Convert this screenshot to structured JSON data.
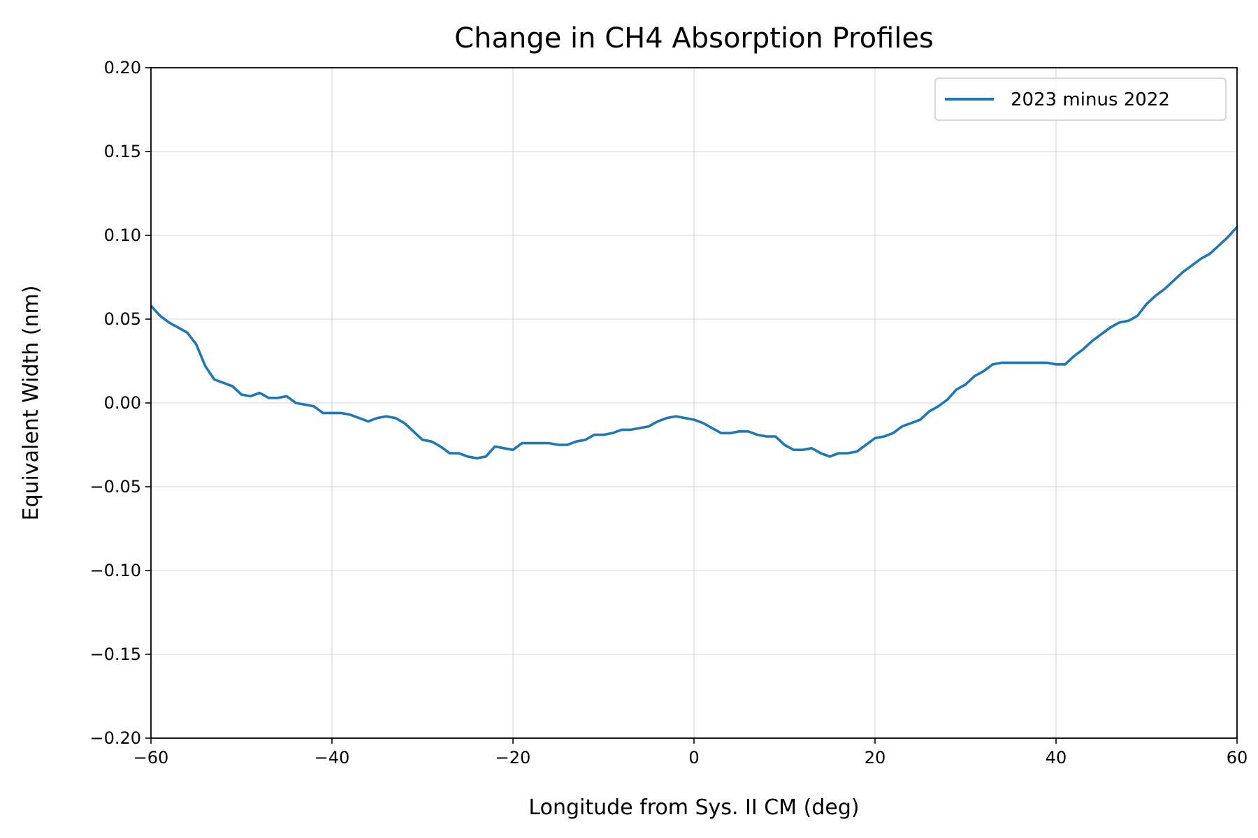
{
  "chart_data": {
    "type": "line",
    "title": "Change in CH4 Absorption Profiles",
    "xlabel": "Longitude from Sys. II CM (deg)",
    "ylabel": "Equivalent Width (nm)",
    "xlim": [
      -60,
      60
    ],
    "ylim": [
      -0.2,
      0.2
    ],
    "xticks": [
      -60,
      -40,
      -20,
      0,
      20,
      40,
      60
    ],
    "xtick_labels": [
      "−60",
      "−40",
      "−20",
      "0",
      "20",
      "40",
      "60"
    ],
    "yticks": [
      -0.2,
      -0.15,
      -0.1,
      -0.05,
      0.0,
      0.05,
      0.1,
      0.15,
      0.2
    ],
    "ytick_labels": [
      "−0.20",
      "−0.15",
      "−0.10",
      "−0.05",
      "0.00",
      "0.05",
      "0.10",
      "0.15",
      "0.20"
    ],
    "grid": true,
    "legend_position": "top-right",
    "series": [
      {
        "name": "2023 minus 2022",
        "color": "#1f77b4",
        "x": [
          -60,
          -59,
          -58,
          -57,
          -56,
          -55,
          -54,
          -53,
          -52,
          -51,
          -50,
          -49,
          -48,
          -47,
          -46,
          -45,
          -44,
          -43,
          -42,
          -41,
          -40,
          -39,
          -38,
          -37,
          -36,
          -35,
          -34,
          -33,
          -32,
          -31,
          -30,
          -29,
          -28,
          -27,
          -26,
          -25,
          -24,
          -23,
          -22,
          -21,
          -20,
          -19,
          -18,
          -17,
          -16,
          -15,
          -14,
          -13,
          -12,
          -11,
          -10,
          -9,
          -8,
          -7,
          -6,
          -5,
          -4,
          -3,
          -2,
          -1,
          0,
          1,
          2,
          3,
          4,
          5,
          6,
          7,
          8,
          9,
          10,
          11,
          12,
          13,
          14,
          15,
          16,
          17,
          18,
          19,
          20,
          21,
          22,
          23,
          24,
          25,
          26,
          27,
          28,
          29,
          30,
          31,
          32,
          33,
          34,
          35,
          36,
          37,
          38,
          39,
          40,
          41,
          42,
          43,
          44,
          45,
          46,
          47,
          48,
          49,
          50,
          51,
          52,
          53,
          54,
          55,
          56,
          57,
          58,
          59,
          60
        ],
        "y": [
          0.058,
          0.052,
          0.048,
          0.045,
          0.042,
          0.035,
          0.022,
          0.014,
          0.012,
          0.01,
          0.005,
          0.004,
          0.006,
          0.003,
          0.003,
          0.004,
          0.0,
          -0.001,
          -0.002,
          -0.006,
          -0.006,
          -0.006,
          -0.007,
          -0.009,
          -0.011,
          -0.009,
          -0.008,
          -0.009,
          -0.012,
          -0.017,
          -0.022,
          -0.023,
          -0.026,
          -0.03,
          -0.03,
          -0.032,
          -0.033,
          -0.032,
          -0.026,
          -0.027,
          -0.028,
          -0.024,
          -0.024,
          -0.024,
          -0.024,
          -0.025,
          -0.025,
          -0.023,
          -0.022,
          -0.019,
          -0.019,
          -0.018,
          -0.016,
          -0.016,
          -0.015,
          -0.014,
          -0.011,
          -0.009,
          -0.008,
          -0.009,
          -0.01,
          -0.012,
          -0.015,
          -0.018,
          -0.018,
          -0.017,
          -0.017,
          -0.019,
          -0.02,
          -0.02,
          -0.025,
          -0.028,
          -0.028,
          -0.027,
          -0.03,
          -0.032,
          -0.03,
          -0.03,
          -0.029,
          -0.025,
          -0.021,
          -0.02,
          -0.018,
          -0.014,
          -0.012,
          -0.01,
          -0.005,
          -0.002,
          0.002,
          0.008,
          0.011,
          0.016,
          0.019,
          0.023,
          0.024,
          0.024,
          0.024,
          0.024,
          0.024,
          0.024,
          0.023,
          0.023,
          0.028,
          0.032,
          0.037,
          0.041,
          0.045,
          0.048,
          0.049,
          0.052,
          0.059,
          0.064,
          0.068,
          0.073,
          0.078,
          0.082,
          0.086,
          0.089,
          0.094,
          0.099,
          0.105
        ]
      }
    ]
  }
}
